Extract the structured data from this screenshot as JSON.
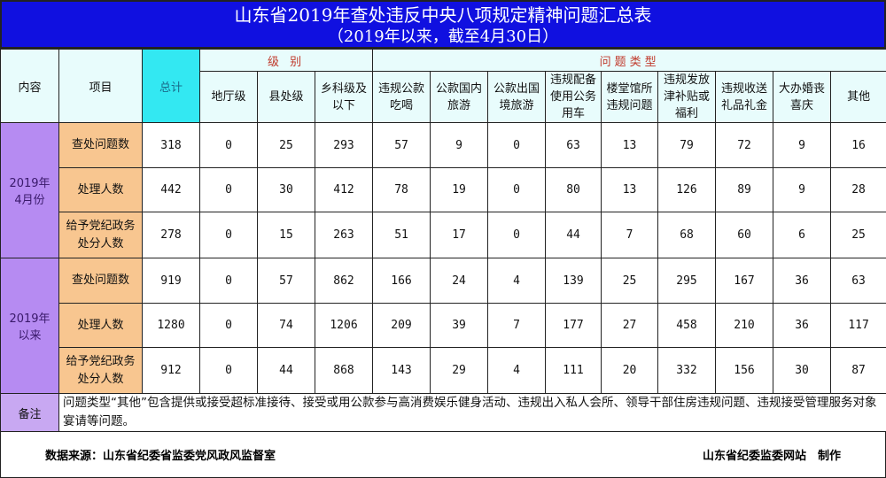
{
  "title": "山东省2019年查处违反中央八项规定精神问题汇总表",
  "subtitle": "（2019年以来，截至4月30日）",
  "header": {
    "content": "内容",
    "item": "项目",
    "total": "总计",
    "level_group": "级 别",
    "type_group": "问题类型",
    "columns": [
      "地厅级",
      "县处级",
      "乡科级及以下",
      "违规公款吃喝",
      "公款国内旅游",
      "公款出国境旅游",
      "违规配备使用公务用车",
      "楼堂馆所违规问题",
      "违规发放津补贴或福利",
      "违规收送礼品礼金",
      "大办婚丧喜庆",
      "其他"
    ]
  },
  "groups": [
    {
      "period": "2019年4月份",
      "rows": [
        {
          "item": "查处问题数",
          "values": [
            "318",
            "0",
            "25",
            "293",
            "57",
            "9",
            "0",
            "63",
            "13",
            "79",
            "72",
            "9",
            "16"
          ]
        },
        {
          "item": "处理人数",
          "values": [
            "442",
            "0",
            "30",
            "412",
            "78",
            "19",
            "0",
            "80",
            "13",
            "126",
            "89",
            "9",
            "28"
          ]
        },
        {
          "item": "给予党纪政务处分人数",
          "values": [
            "278",
            "0",
            "15",
            "263",
            "51",
            "17",
            "0",
            "44",
            "7",
            "68",
            "60",
            "6",
            "25"
          ]
        }
      ]
    },
    {
      "period": "2019年以来",
      "rows": [
        {
          "item": "查处问题数",
          "values": [
            "919",
            "0",
            "57",
            "862",
            "166",
            "24",
            "4",
            "139",
            "25",
            "295",
            "167",
            "36",
            "63"
          ]
        },
        {
          "item": "处理人数",
          "values": [
            "1280",
            "0",
            "74",
            "1206",
            "209",
            "39",
            "7",
            "177",
            "27",
            "458",
            "210",
            "36",
            "117"
          ]
        },
        {
          "item": "给予党纪政务处分人数",
          "values": [
            "912",
            "0",
            "44",
            "868",
            "143",
            "29",
            "4",
            "111",
            "20",
            "332",
            "156",
            "30",
            "87"
          ]
        }
      ]
    }
  ],
  "note": {
    "label": "备注",
    "text": "问题类型“其他”包含提供或接受超标准接待、接受或用公款参与高消费娱乐健身活动、违规出入私人会所、领导干部住房违规问题、违规接受管理服务对象宴请等问题。"
  },
  "footer": {
    "source": "数据来源：山东省纪委省监委党风政风监督室",
    "producer": "山东省纪委监委网站　制作"
  },
  "colors": {
    "title_bg": "#1010e0",
    "period_bg": "#b68bf2",
    "item_bg": "#f8c690",
    "total_header_bg": "#33e8f2",
    "group_text": "#c0392b"
  }
}
